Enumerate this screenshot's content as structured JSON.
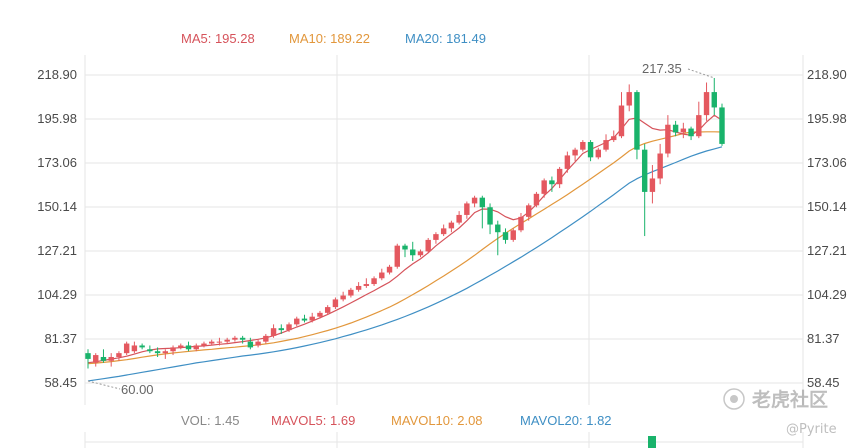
{
  "legend_top": {
    "ma5": {
      "label": "MA5: 195.28",
      "color": "#d6535b"
    },
    "ma10": {
      "label": "MA10: 189.22",
      "color": "#e2973c"
    },
    "ma20": {
      "label": "MA20: 181.49",
      "color": "#3f8fc4"
    }
  },
  "legend_bottom": {
    "vol": {
      "label": "VOL: 1.45",
      "color": "#888888"
    },
    "mavol5": {
      "label": "MAVOL5: 1.69",
      "color": "#d6535b"
    },
    "mavol10": {
      "label": "MAVOL10: 2.08",
      "color": "#e2973c"
    },
    "mavol20": {
      "label": "MAVOL20: 1.82",
      "color": "#3f8fc4"
    }
  },
  "colors": {
    "up": "#e4585f",
    "down": "#19b36b",
    "grid": "#e6e6e6"
  },
  "annotations": {
    "high": "217.35",
    "low": "60.00"
  },
  "watermark": {
    "brand": "老虎社区",
    "user": "@Pyrite"
  },
  "chart_data": {
    "type": "candlestick",
    "y_ticks": [
      "218.90",
      "195.98",
      "173.06",
      "150.14",
      "127.21",
      "104.29",
      "81.37",
      "58.45"
    ],
    "ylim": [
      58.45,
      218.9
    ],
    "grid": true,
    "candles": [
      [
        74,
        71,
        76,
        66
      ],
      [
        69,
        73,
        74,
        67
      ],
      [
        72,
        70,
        76,
        69
      ],
      [
        70,
        72,
        74,
        67
      ],
      [
        72,
        74,
        75,
        70
      ],
      [
        74,
        79,
        80,
        73
      ],
      [
        75,
        78,
        80,
        74
      ],
      [
        78,
        77,
        79,
        76
      ],
      [
        76,
        75,
        78,
        74
      ],
      [
        75,
        74,
        77,
        72
      ],
      [
        74,
        75,
        76,
        71
      ],
      [
        75,
        77,
        78,
        73
      ],
      [
        77,
        78,
        79,
        76
      ],
      [
        78,
        76,
        80,
        75
      ],
      [
        76,
        78,
        79,
        75
      ],
      [
        78,
        79,
        80,
        77
      ],
      [
        79,
        80,
        81,
        78
      ],
      [
        80,
        80,
        82,
        78
      ],
      [
        80,
        81,
        82,
        79
      ],
      [
        81,
        82,
        83,
        80
      ],
      [
        82,
        81,
        83,
        79
      ],
      [
        80,
        77,
        82,
        76
      ],
      [
        78,
        80,
        81,
        77
      ],
      [
        80,
        83,
        84,
        79
      ],
      [
        83,
        87,
        89,
        82
      ],
      [
        87,
        86,
        89,
        84
      ],
      [
        86,
        89,
        90,
        85
      ],
      [
        89,
        92,
        93,
        88
      ],
      [
        92,
        91,
        94,
        90
      ],
      [
        91,
        93,
        95,
        90
      ],
      [
        93,
        95,
        96,
        92
      ],
      [
        95,
        98,
        99,
        94
      ],
      [
        98,
        102,
        103,
        97
      ],
      [
        102,
        104,
        106,
        101
      ],
      [
        104,
        107,
        108,
        103
      ],
      [
        107,
        109,
        111,
        106
      ],
      [
        109,
        110,
        113,
        108
      ],
      [
        110,
        113,
        114,
        109
      ],
      [
        113,
        116,
        118,
        112
      ],
      [
        116,
        119,
        120,
        115
      ],
      [
        119,
        130,
        131,
        118
      ],
      [
        130,
        128,
        131,
        124
      ],
      [
        128,
        125,
        132,
        122
      ],
      [
        125,
        127,
        128,
        124
      ],
      [
        127,
        133,
        134,
        126
      ],
      [
        133,
        136,
        137,
        131
      ],
      [
        136,
        139,
        141,
        135
      ],
      [
        139,
        142,
        143,
        137
      ],
      [
        142,
        146,
        148,
        141
      ],
      [
        146,
        152,
        153,
        144
      ],
      [
        152,
        155,
        156,
        150
      ],
      [
        155,
        150,
        156,
        139
      ],
      [
        150,
        141,
        152,
        136
      ],
      [
        141,
        137,
        143,
        125
      ],
      [
        137,
        133,
        139,
        131
      ],
      [
        133,
        138,
        139,
        132
      ],
      [
        138,
        145,
        147,
        137
      ],
      [
        145,
        151,
        152,
        143
      ],
      [
        151,
        157,
        158,
        150
      ],
      [
        157,
        164,
        165,
        155
      ],
      [
        164,
        162,
        166,
        158
      ],
      [
        162,
        170,
        171,
        160
      ],
      [
        170,
        177,
        179,
        168
      ],
      [
        177,
        180,
        181,
        174
      ],
      [
        180,
        184,
        185,
        179
      ],
      [
        184,
        176,
        185,
        174
      ],
      [
        176,
        180,
        181,
        175
      ],
      [
        180,
        185,
        188,
        179
      ],
      [
        185,
        187,
        190,
        184
      ],
      [
        187,
        203,
        210,
        186
      ],
      [
        203,
        210,
        214,
        200
      ],
      [
        210,
        180,
        211,
        175
      ],
      [
        180,
        158,
        183,
        135
      ],
      [
        158,
        165,
        172,
        152
      ],
      [
        165,
        178,
        183,
        162
      ],
      [
        178,
        193,
        198,
        176
      ],
      [
        193,
        189,
        195,
        187
      ],
      [
        189,
        191,
        194,
        186
      ],
      [
        191,
        187,
        192,
        185
      ],
      [
        187,
        198,
        205,
        186
      ],
      [
        198,
        210,
        215,
        195
      ],
      [
        210,
        202,
        217.35,
        198
      ],
      [
        202,
        183,
        204,
        182
      ]
    ],
    "ma5": [
      69.0,
      69.5,
      70.2,
      70.9,
      71.6,
      72.4,
      73.5,
      74.7,
      75.6,
      76.2,
      76.4,
      76.6,
      76.9,
      77.2,
      77.5,
      77.8,
      78.2,
      78.6,
      79.0,
      79.5,
      80.0,
      80.6,
      81.2,
      82.0,
      83.1,
      84.5,
      86.0,
      87.6,
      89.1,
      90.7,
      92.4,
      94.2,
      96.1,
      98.1,
      100.2,
      102.3,
      104.5,
      106.6,
      108.8,
      111.0,
      114.1,
      117.5,
      120.5,
      123.1,
      126.3,
      129.9,
      133.1,
      136.2,
      139.2,
      143.0,
      147.2,
      149.1,
      149.0,
      147.6,
      145.1,
      143.5,
      144.4,
      147.5,
      151.5,
      156.1,
      159.8,
      164.4,
      169.3,
      173.6,
      178.0,
      180.1,
      181.9,
      183.8,
      186.3,
      190.8,
      195.8,
      196.5,
      193.8,
      191.1,
      190.2,
      190.4,
      189.2,
      188.1,
      187.5,
      190.1,
      194.4,
      197.9,
      195.28
    ],
    "ma10": [
      68.5,
      68.8,
      69.2,
      69.6,
      70.1,
      70.6,
      71.2,
      71.9,
      72.5,
      73.1,
      73.6,
      74.1,
      74.5,
      74.9,
      75.3,
      75.7,
      76.0,
      76.4,
      76.8,
      77.1,
      77.5,
      77.9,
      78.3,
      78.8,
      79.4,
      80.1,
      80.9,
      81.7,
      82.6,
      83.6,
      84.7,
      85.8,
      87.0,
      88.3,
      89.7,
      91.2,
      92.8,
      94.5,
      96.2,
      98.0,
      100.0,
      102.2,
      104.5,
      106.8,
      109.2,
      111.7,
      114.2,
      116.8,
      119.4,
      122.1,
      125.0,
      128.0,
      130.9,
      133.8,
      136.5,
      139.1,
      141.6,
      144.0,
      146.5,
      149.0,
      151.5,
      154.0,
      156.6,
      159.3,
      162.0,
      164.8,
      167.6,
      170.4,
      173.2,
      176.2,
      179.3,
      181.6,
      183.2,
      184.4,
      185.4,
      186.4,
      187.4,
      188.4,
      189.2,
      189.22,
      189.3,
      189.3,
      189.22
    ],
    "ma20": [
      59.5,
      60.1,
      60.7,
      61.3,
      61.9,
      62.6,
      63.3,
      64.0,
      64.7,
      65.4,
      66.1,
      66.8,
      67.5,
      68.2,
      68.9,
      69.5,
      70.1,
      70.7,
      71.3,
      71.9,
      72.5,
      73.0,
      73.5,
      74.1,
      74.7,
      75.4,
      76.1,
      76.9,
      77.7,
      78.6,
      79.5,
      80.5,
      81.5,
      82.6,
      83.7,
      84.9,
      86.1,
      87.4,
      88.7,
      90.1,
      91.6,
      93.1,
      94.7,
      96.4,
      98.1,
      99.9,
      101.8,
      103.7,
      105.7,
      107.8,
      110.0,
      112.2,
      114.5,
      116.8,
      119.2,
      121.6,
      124.0,
      126.5,
      129.0,
      131.6,
      134.2,
      136.9,
      139.6,
      142.3,
      145.1,
      147.9,
      150.8,
      153.7,
      156.6,
      159.6,
      162.6,
      164.9,
      166.8,
      168.5,
      170.1,
      171.7,
      173.3,
      175.0,
      176.6,
      178.0,
      179.3,
      180.4,
      181.49
    ]
  }
}
